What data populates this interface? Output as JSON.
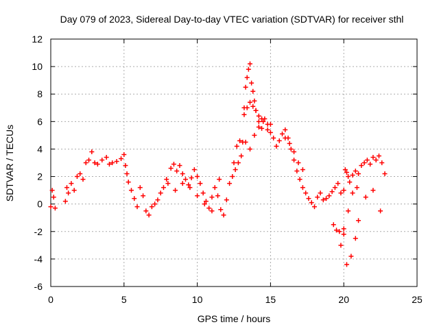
{
  "chart_data": {
    "type": "scatter",
    "title": "Day 079 of 2023, Sidereal Day-to-day VTEC variation (SDTVAR) for receiver sthl",
    "xlabel": "GPS time / hours",
    "ylabel": "SDTVAR / TECUs",
    "xlim": [
      0,
      25
    ],
    "ylim": [
      -6,
      12
    ],
    "xticks": [
      0,
      5,
      10,
      15,
      20,
      25
    ],
    "yticks": [
      -6,
      -4,
      -2,
      0,
      2,
      4,
      6,
      8,
      10,
      12
    ],
    "grid": true,
    "marker": "+",
    "color": "#ff0000",
    "series": [
      {
        "name": "SDTVAR",
        "x": [
          0.0,
          0.1,
          0.2,
          0.3,
          1.0,
          1.1,
          1.2,
          1.4,
          1.6,
          1.8,
          2.0,
          2.2,
          2.4,
          2.6,
          2.8,
          3.0,
          3.2,
          3.5,
          3.8,
          4.0,
          4.2,
          4.5,
          4.8,
          5.0,
          5.1,
          5.2,
          5.3,
          5.5,
          5.7,
          5.9,
          6.1,
          6.3,
          6.5,
          6.7,
          6.9,
          7.1,
          7.3,
          7.5,
          7.7,
          7.9,
          8.0,
          8.2,
          8.4,
          8.6,
          8.8,
          9.0,
          9.2,
          9.4,
          9.6,
          9.8,
          10.0,
          10.2,
          10.4,
          10.6,
          10.8,
          11.0,
          11.2,
          11.4,
          11.6,
          11.8,
          12.0,
          12.2,
          12.4,
          12.6,
          12.8,
          13.0,
          13.1,
          13.2,
          13.3,
          13.4,
          13.5,
          13.6,
          13.7,
          13.8,
          13.9,
          14.0,
          14.2,
          14.4,
          14.6,
          14.8,
          15.0,
          15.2,
          15.4,
          15.6,
          15.8,
          16.0,
          16.2,
          16.4,
          16.6,
          16.8,
          17.0,
          17.2,
          17.4,
          17.6,
          17.8,
          18.0,
          18.2,
          18.4,
          18.6,
          18.8,
          19.0,
          19.2,
          19.4,
          19.6,
          19.8,
          20.0,
          20.1,
          20.2,
          20.3,
          20.4,
          20.6,
          20.8,
          21.0,
          21.2,
          21.4,
          21.6,
          21.8,
          22.0,
          22.2,
          22.4,
          22.6,
          22.8,
          13.2,
          13.4,
          13.6,
          13.8,
          14.0,
          14.2,
          14.4,
          13.3,
          13.6,
          13.9,
          14.2,
          14.5,
          14.8,
          15.0,
          19.3,
          19.5,
          19.7,
          20.0,
          20.2,
          20.5,
          20.8,
          21.0,
          21.5,
          22.0,
          22.5,
          19.8,
          20.0,
          20.3,
          20.6,
          20.9,
          12.5,
          12.7,
          12.9,
          8.5,
          9.0,
          9.5,
          10.0,
          10.5,
          11.0,
          11.5,
          16.0,
          16.3,
          16.6,
          16.9,
          17.2
        ],
        "y": [
          -0.2,
          1.0,
          0.5,
          -0.3,
          0.2,
          1.2,
          0.8,
          1.5,
          1.0,
          2.0,
          2.2,
          1.8,
          3.0,
          3.2,
          3.8,
          3.0,
          2.9,
          3.2,
          3.4,
          2.9,
          3.0,
          3.1,
          3.3,
          3.6,
          2.8,
          2.2,
          1.6,
          1.0,
          0.4,
          -0.2,
          1.2,
          0.6,
          -0.5,
          -0.8,
          -0.2,
          0.0,
          0.3,
          0.8,
          1.2,
          1.8,
          1.5,
          2.6,
          2.9,
          2.4,
          2.8,
          2.2,
          1.8,
          1.4,
          1.9,
          2.5,
          2.0,
          1.5,
          0.8,
          0.2,
          -0.3,
          0.5,
          1.2,
          0.6,
          -0.4,
          -0.8,
          0.3,
          1.5,
          2.0,
          2.5,
          3.0,
          3.5,
          4.5,
          7.0,
          8.5,
          9.2,
          9.8,
          10.2,
          8.8,
          8.2,
          7.5,
          6.8,
          6.0,
          5.5,
          6.2,
          5.8,
          5.2,
          4.8,
          4.2,
          4.6,
          5.1,
          5.4,
          4.8,
          4.0,
          3.2,
          2.4,
          1.8,
          1.2,
          0.8,
          0.4,
          0.1,
          -0.2,
          0.5,
          0.8,
          0.3,
          0.4,
          0.6,
          0.9,
          1.2,
          1.5,
          0.8,
          1.0,
          2.5,
          2.3,
          2.0,
          1.6,
          2.1,
          2.4,
          2.2,
          2.8,
          3.0,
          3.2,
          2.9,
          3.4,
          3.2,
          3.5,
          3.0,
          2.2,
          6.5,
          7.0,
          7.4,
          7.1,
          6.8,
          6.4,
          6.2,
          4.5,
          4.0,
          5.0,
          5.6,
          6.0,
          5.4,
          5.8,
          -1.5,
          -1.9,
          -2.0,
          -2.2,
          -4.4,
          -3.8,
          -2.5,
          -1.2,
          0.5,
          1.0,
          -0.5,
          -3.0,
          -1.8,
          -0.5,
          0.8,
          1.2,
          3.0,
          4.2,
          4.6,
          1.0,
          1.5,
          1.2,
          0.6,
          0.0,
          -0.5,
          1.8,
          4.8,
          4.4,
          3.8,
          3.0,
          2.5
        ]
      }
    ]
  }
}
